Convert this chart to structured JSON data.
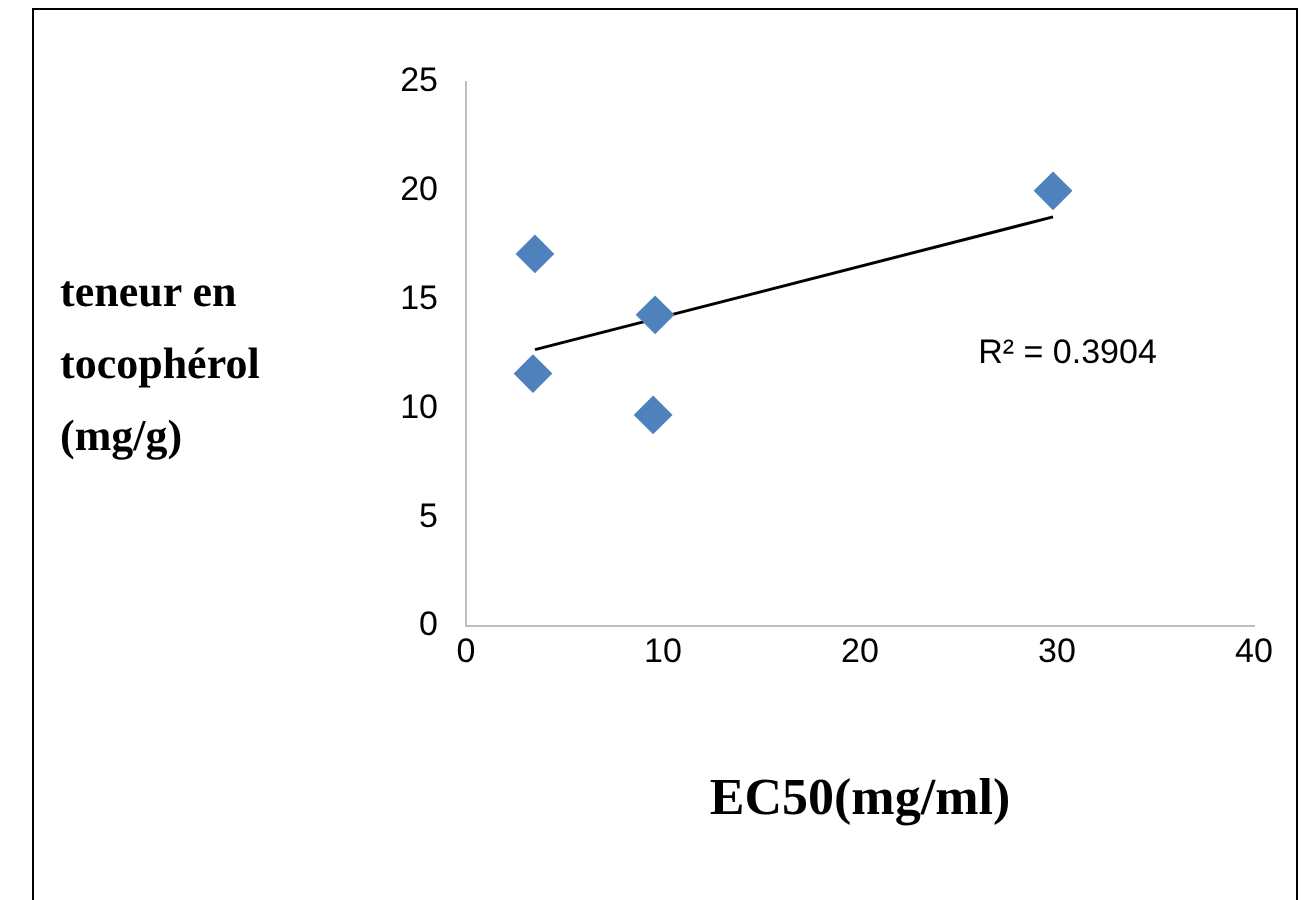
{
  "chart_data": {
    "type": "scatter",
    "xlabel": "EC50(mg/ml)",
    "ylabel": "teneur en tocophérol (mg/g)",
    "xlim": [
      0,
      40
    ],
    "xticks": [
      0,
      10,
      20,
      30,
      40
    ],
    "ylim": [
      0,
      25
    ],
    "yticks": [
      0,
      5,
      10,
      15,
      20,
      25
    ],
    "grid": false,
    "marker": "diamond",
    "series": [
      {
        "type": "scatter",
        "color": "#4f81bd",
        "x": [
          3.5,
          3.4,
          9.6,
          9.5,
          29.8
        ],
        "values": [
          17.1,
          11.6,
          14.3,
          9.7,
          20.0
        ]
      },
      {
        "type": "line",
        "color": "#000000",
        "marker": "none",
        "x": [
          3.5,
          29.8
        ],
        "values": [
          12.7,
          18.8
        ]
      }
    ],
    "annotations": [
      "R² = 0.3904"
    ]
  }
}
